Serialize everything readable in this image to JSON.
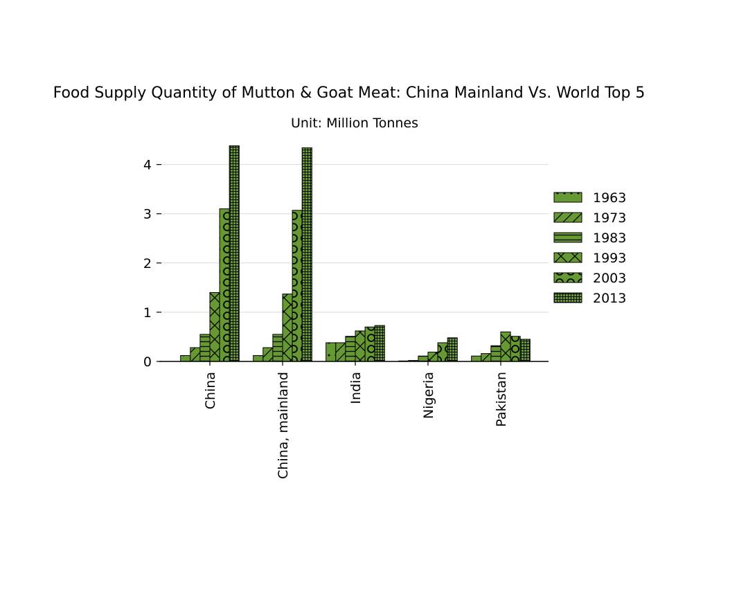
{
  "chart_data": {
    "type": "bar",
    "title": "Food Supply Quantity of Mutton & Goat Meat: China Mainland Vs. World Top 5",
    "subtitle": "Unit: Million Tonnes",
    "xlabel": "",
    "ylabel": "",
    "categories": [
      "China",
      "China, mainland",
      "India",
      "Nigeria",
      "Pakistan"
    ],
    "ylim": [
      0,
      4.4
    ],
    "yticks": [
      0,
      1,
      2,
      3,
      4
    ],
    "grid": true,
    "legend_position": "right",
    "bar_color": "#669933",
    "series": [
      {
        "name": "1963",
        "pattern": "dots",
        "values": [
          0.12,
          0.12,
          0.38,
          0.01,
          0.11
        ]
      },
      {
        "name": "1973",
        "pattern": "diagonal",
        "values": [
          0.28,
          0.28,
          0.38,
          0.02,
          0.16
        ]
      },
      {
        "name": "1983",
        "pattern": "horizontal",
        "values": [
          0.55,
          0.55,
          0.51,
          0.11,
          0.32
        ]
      },
      {
        "name": "1993",
        "pattern": "cross",
        "values": [
          1.4,
          1.37,
          0.62,
          0.19,
          0.6
        ]
      },
      {
        "name": "2003",
        "pattern": "circles",
        "values": [
          3.1,
          3.07,
          0.7,
          0.38,
          0.51
        ]
      },
      {
        "name": "2013",
        "pattern": "grid",
        "values": [
          4.38,
          4.34,
          0.73,
          0.48,
          0.45
        ]
      }
    ]
  }
}
